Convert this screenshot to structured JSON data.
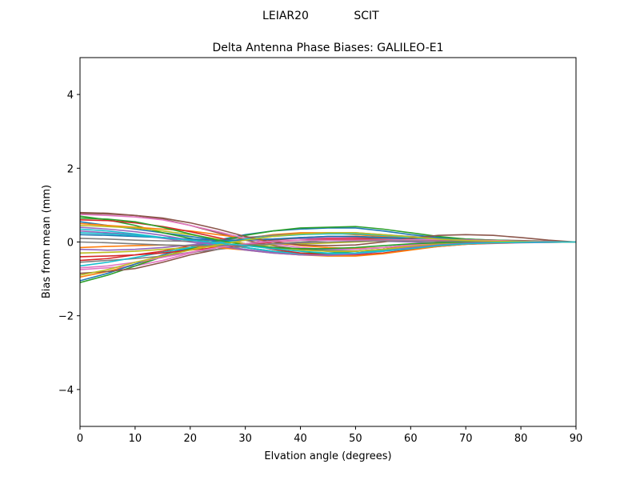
{
  "figure": {
    "suptitle_left": "LEIAR20",
    "suptitle_right": "SCIT"
  },
  "chart_data": {
    "type": "line",
    "title": "Delta Antenna Phase Biases: GALILEO-E1",
    "xlabel": "Elvation angle (degrees)",
    "ylabel": "Bias from mean (mm)",
    "xlim": [
      0,
      90
    ],
    "ylim": [
      -5,
      5
    ],
    "xticks": [
      0,
      10,
      20,
      30,
      40,
      50,
      60,
      70,
      80,
      90
    ],
    "yticks": [
      -4,
      -2,
      0,
      2,
      4
    ],
    "ytick_labels": [
      "−4",
      "−2",
      "0",
      "2",
      "4"
    ],
    "grid": false,
    "legend": "none",
    "x": [
      0,
      5,
      10,
      15,
      20,
      25,
      30,
      35,
      40,
      45,
      50,
      55,
      60,
      65,
      70,
      75,
      80,
      85,
      90
    ],
    "series": [
      {
        "color": "#1f77b4",
        "values": [
          0.55,
          0.45,
          0.35,
          0.25,
          0.15,
          0.05,
          -0.05,
          -0.15,
          -0.2,
          -0.22,
          -0.2,
          -0.15,
          -0.08,
          -0.04,
          -0.02,
          -0.02,
          -0.01,
          -0.01,
          0
        ]
      },
      {
        "color": "#ff7f0e",
        "values": [
          -0.95,
          -0.8,
          -0.6,
          -0.4,
          -0.2,
          -0.05,
          0.1,
          0.2,
          0.25,
          0.25,
          0.2,
          0.15,
          0.1,
          0.06,
          0.04,
          0.02,
          0.01,
          0.0,
          0
        ]
      },
      {
        "color": "#2ca02c",
        "values": [
          0.7,
          0.6,
          0.45,
          0.25,
          0.1,
          -0.05,
          -0.15,
          -0.25,
          -0.3,
          -0.3,
          -0.25,
          -0.2,
          -0.12,
          -0.06,
          -0.02,
          0.0,
          0.01,
          0.01,
          0
        ]
      },
      {
        "color": "#d62728",
        "values": [
          -0.5,
          -0.45,
          -0.35,
          -0.25,
          -0.1,
          0.0,
          0.05,
          0.08,
          0.1,
          0.12,
          0.12,
          0.1,
          0.08,
          0.06,
          0.05,
          0.04,
          0.03,
          0.01,
          0
        ]
      },
      {
        "color": "#9467bd",
        "values": [
          0.3,
          0.25,
          0.2,
          0.1,
          0.0,
          -0.1,
          -0.2,
          -0.28,
          -0.35,
          -0.35,
          -0.3,
          -0.22,
          -0.15,
          -0.1,
          -0.06,
          -0.04,
          -0.02,
          -0.01,
          0
        ]
      },
      {
        "color": "#8c564b",
        "values": [
          0.8,
          0.78,
          0.72,
          0.62,
          0.45,
          0.25,
          0.05,
          -0.1,
          -0.2,
          -0.25,
          -0.25,
          -0.2,
          -0.1,
          0.0,
          0.05,
          0.05,
          0.04,
          0.02,
          0
        ]
      },
      {
        "color": "#e377c2",
        "values": [
          -0.75,
          -0.7,
          -0.65,
          -0.5,
          -0.3,
          -0.15,
          -0.05,
          0.05,
          0.1,
          0.12,
          0.1,
          0.08,
          0.06,
          0.05,
          0.04,
          0.03,
          0.02,
          0.01,
          0
        ]
      },
      {
        "color": "#7f7f7f",
        "values": [
          0.1,
          0.08,
          0.05,
          0.03,
          0.02,
          0.05,
          0.12,
          0.18,
          0.22,
          0.25,
          0.25,
          0.2,
          0.15,
          0.1,
          0.06,
          0.04,
          0.02,
          0.01,
          0
        ]
      },
      {
        "color": "#bcbd22",
        "values": [
          -0.3,
          -0.28,
          -0.25,
          -0.2,
          -0.15,
          -0.12,
          -0.1,
          -0.08,
          -0.05,
          -0.03,
          0.0,
          0.03,
          0.05,
          0.05,
          0.04,
          0.03,
          0.02,
          0.01,
          0
        ]
      },
      {
        "color": "#17becf",
        "values": [
          0.35,
          0.3,
          0.22,
          0.12,
          0.05,
          -0.05,
          -0.15,
          -0.25,
          -0.32,
          -0.33,
          -0.3,
          -0.22,
          -0.15,
          -0.08,
          -0.04,
          -0.02,
          -0.01,
          0.0,
          0
        ]
      },
      {
        "color": "#1f77b4",
        "values": [
          -1.05,
          -0.85,
          -0.6,
          -0.35,
          -0.15,
          0.05,
          0.2,
          0.3,
          0.35,
          0.38,
          0.38,
          0.3,
          0.2,
          0.12,
          0.08,
          0.05,
          0.03,
          0.01,
          0
        ]
      },
      {
        "color": "#ff7f0e",
        "values": [
          0.5,
          0.45,
          0.4,
          0.35,
          0.3,
          0.2,
          0.1,
          0.0,
          -0.1,
          -0.15,
          -0.18,
          -0.15,
          -0.1,
          -0.05,
          -0.02,
          0.0,
          0.01,
          0.01,
          0
        ]
      },
      {
        "color": "#2ca02c",
        "values": [
          -1.1,
          -0.9,
          -0.65,
          -0.4,
          -0.18,
          0.02,
          0.18,
          0.3,
          0.38,
          0.4,
          0.42,
          0.35,
          0.25,
          0.15,
          0.08,
          0.05,
          0.03,
          0.01,
          0
        ]
      },
      {
        "color": "#d62728",
        "values": [
          0.6,
          0.58,
          0.52,
          0.42,
          0.28,
          0.12,
          -0.05,
          -0.2,
          -0.3,
          -0.35,
          -0.35,
          -0.3,
          -0.2,
          -0.12,
          -0.06,
          -0.03,
          -0.01,
          0.0,
          0
        ]
      },
      {
        "color": "#9467bd",
        "values": [
          -0.2,
          -0.22,
          -0.2,
          -0.15,
          -0.08,
          0.0,
          0.05,
          0.08,
          0.1,
          0.08,
          0.05,
          0.02,
          0.0,
          -0.02,
          -0.02,
          -0.02,
          -0.01,
          0.0,
          0
        ]
      },
      {
        "color": "#8c564b",
        "values": [
          -0.85,
          -0.8,
          -0.72,
          -0.55,
          -0.35,
          -0.2,
          -0.05,
          0.05,
          0.12,
          0.15,
          0.15,
          0.12,
          0.1,
          0.08,
          0.06,
          0.04,
          0.02,
          0.01,
          0
        ]
      },
      {
        "color": "#e377c2",
        "values": [
          0.75,
          0.72,
          0.68,
          0.6,
          0.45,
          0.28,
          0.1,
          -0.05,
          -0.15,
          -0.2,
          -0.2,
          -0.15,
          -0.08,
          -0.02,
          0.02,
          0.03,
          0.02,
          0.01,
          0
        ]
      },
      {
        "color": "#7f7f7f",
        "values": [
          -0.55,
          -0.5,
          -0.45,
          -0.38,
          -0.28,
          -0.2,
          -0.12,
          -0.05,
          0.0,
          0.05,
          0.08,
          0.1,
          0.1,
          0.08,
          0.06,
          0.04,
          0.02,
          0.01,
          0
        ]
      },
      {
        "color": "#bcbd22",
        "values": [
          0.45,
          0.42,
          0.38,
          0.3,
          0.2,
          0.08,
          -0.05,
          -0.15,
          -0.22,
          -0.25,
          -0.25,
          -0.2,
          -0.12,
          -0.06,
          -0.02,
          0.0,
          0.01,
          0.0,
          0
        ]
      },
      {
        "color": "#17becf",
        "values": [
          -0.65,
          -0.55,
          -0.42,
          -0.28,
          -0.15,
          -0.02,
          0.08,
          0.15,
          0.2,
          0.22,
          0.22,
          0.18,
          0.12,
          0.08,
          0.05,
          0.03,
          0.02,
          0.01,
          0
        ]
      },
      {
        "color": "#1f77b4",
        "values": [
          0.2,
          0.18,
          0.15,
          0.12,
          0.08,
          0.05,
          0.05,
          0.08,
          0.12,
          0.15,
          0.15,
          0.12,
          0.08,
          0.05,
          0.03,
          0.02,
          0.01,
          0.0,
          0
        ]
      },
      {
        "color": "#ff7f0e",
        "values": [
          -0.15,
          -0.12,
          -0.1,
          -0.08,
          -0.1,
          -0.15,
          -0.22,
          -0.3,
          -0.35,
          -0.38,
          -0.38,
          -0.32,
          -0.22,
          -0.12,
          -0.06,
          -0.03,
          -0.01,
          0.0,
          0
        ]
      },
      {
        "color": "#2ca02c",
        "values": [
          0.65,
          0.62,
          0.55,
          0.4,
          0.22,
          0.05,
          -0.08,
          -0.15,
          -0.18,
          -0.18,
          -0.15,
          -0.1,
          -0.05,
          -0.02,
          0.0,
          0.01,
          0.01,
          0.0,
          0
        ]
      },
      {
        "color": "#d62728",
        "values": [
          -0.4,
          -0.38,
          -0.35,
          -0.3,
          -0.22,
          -0.15,
          -0.08,
          0.0,
          0.05,
          0.08,
          0.08,
          0.06,
          0.05,
          0.05,
          0.05,
          0.04,
          0.02,
          0.01,
          0
        ]
      },
      {
        "color": "#9467bd",
        "values": [
          0.4,
          0.35,
          0.28,
          0.18,
          0.05,
          -0.1,
          -0.22,
          -0.3,
          -0.35,
          -0.36,
          -0.33,
          -0.25,
          -0.15,
          -0.08,
          -0.03,
          -0.01,
          0.0,
          0.0,
          0
        ]
      },
      {
        "color": "#8c564b",
        "values": [
          0.78,
          0.76,
          0.72,
          0.65,
          0.52,
          0.35,
          0.15,
          0.0,
          -0.08,
          -0.1,
          -0.08,
          0.0,
          0.1,
          0.18,
          0.2,
          0.18,
          0.12,
          0.05,
          0
        ]
      },
      {
        "color": "#e377c2",
        "values": [
          -0.7,
          -0.65,
          -0.55,
          -0.42,
          -0.28,
          -0.15,
          -0.05,
          0.02,
          0.05,
          0.05,
          0.05,
          0.05,
          0.06,
          0.06,
          0.05,
          0.04,
          0.02,
          0.01,
          0
        ]
      },
      {
        "color": "#7f7f7f",
        "values": [
          0.0,
          -0.02,
          -0.05,
          -0.08,
          -0.1,
          -0.1,
          -0.08,
          -0.05,
          -0.02,
          0.0,
          0.02,
          0.03,
          0.03,
          0.02,
          0.02,
          0.01,
          0.01,
          0.0,
          0
        ]
      },
      {
        "color": "#bcbd22",
        "values": [
          -0.9,
          -0.75,
          -0.55,
          -0.38,
          -0.22,
          -0.08,
          0.05,
          0.15,
          0.22,
          0.25,
          0.25,
          0.2,
          0.14,
          0.08,
          0.04,
          0.02,
          0.01,
          0.0,
          0
        ]
      },
      {
        "color": "#17becf",
        "values": [
          0.25,
          0.22,
          0.18,
          0.12,
          0.05,
          -0.02,
          -0.1,
          -0.18,
          -0.25,
          -0.3,
          -0.3,
          -0.25,
          -0.18,
          -0.1,
          -0.05,
          -0.02,
          -0.01,
          0.0,
          0
        ]
      }
    ]
  }
}
